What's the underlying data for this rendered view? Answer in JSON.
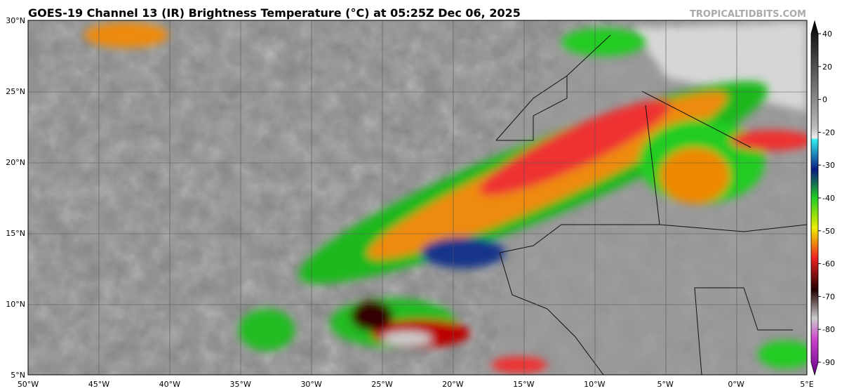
{
  "header": {
    "title": "GOES-19 Channel 13 (IR) Brightness Temperature (°C) at 05:25Z Dec 06, 2025",
    "credit": "TROPICALTIDBITS.COM"
  },
  "map": {
    "lat_labels": [
      "30°N",
      "25°N",
      "20°N",
      "15°N",
      "10°N",
      "5°N"
    ],
    "lon_labels": [
      "50°W",
      "45°W",
      "40°W",
      "35°W",
      "30°W",
      "25°W",
      "20°W",
      "15°W",
      "10°W",
      "5°W",
      "0°W",
      "5°E"
    ]
  },
  "colorbar": {
    "ticks": [
      40,
      20,
      0,
      -20,
      -30,
      -40,
      -50,
      -60,
      -70,
      -80,
      -90
    ]
  }
}
